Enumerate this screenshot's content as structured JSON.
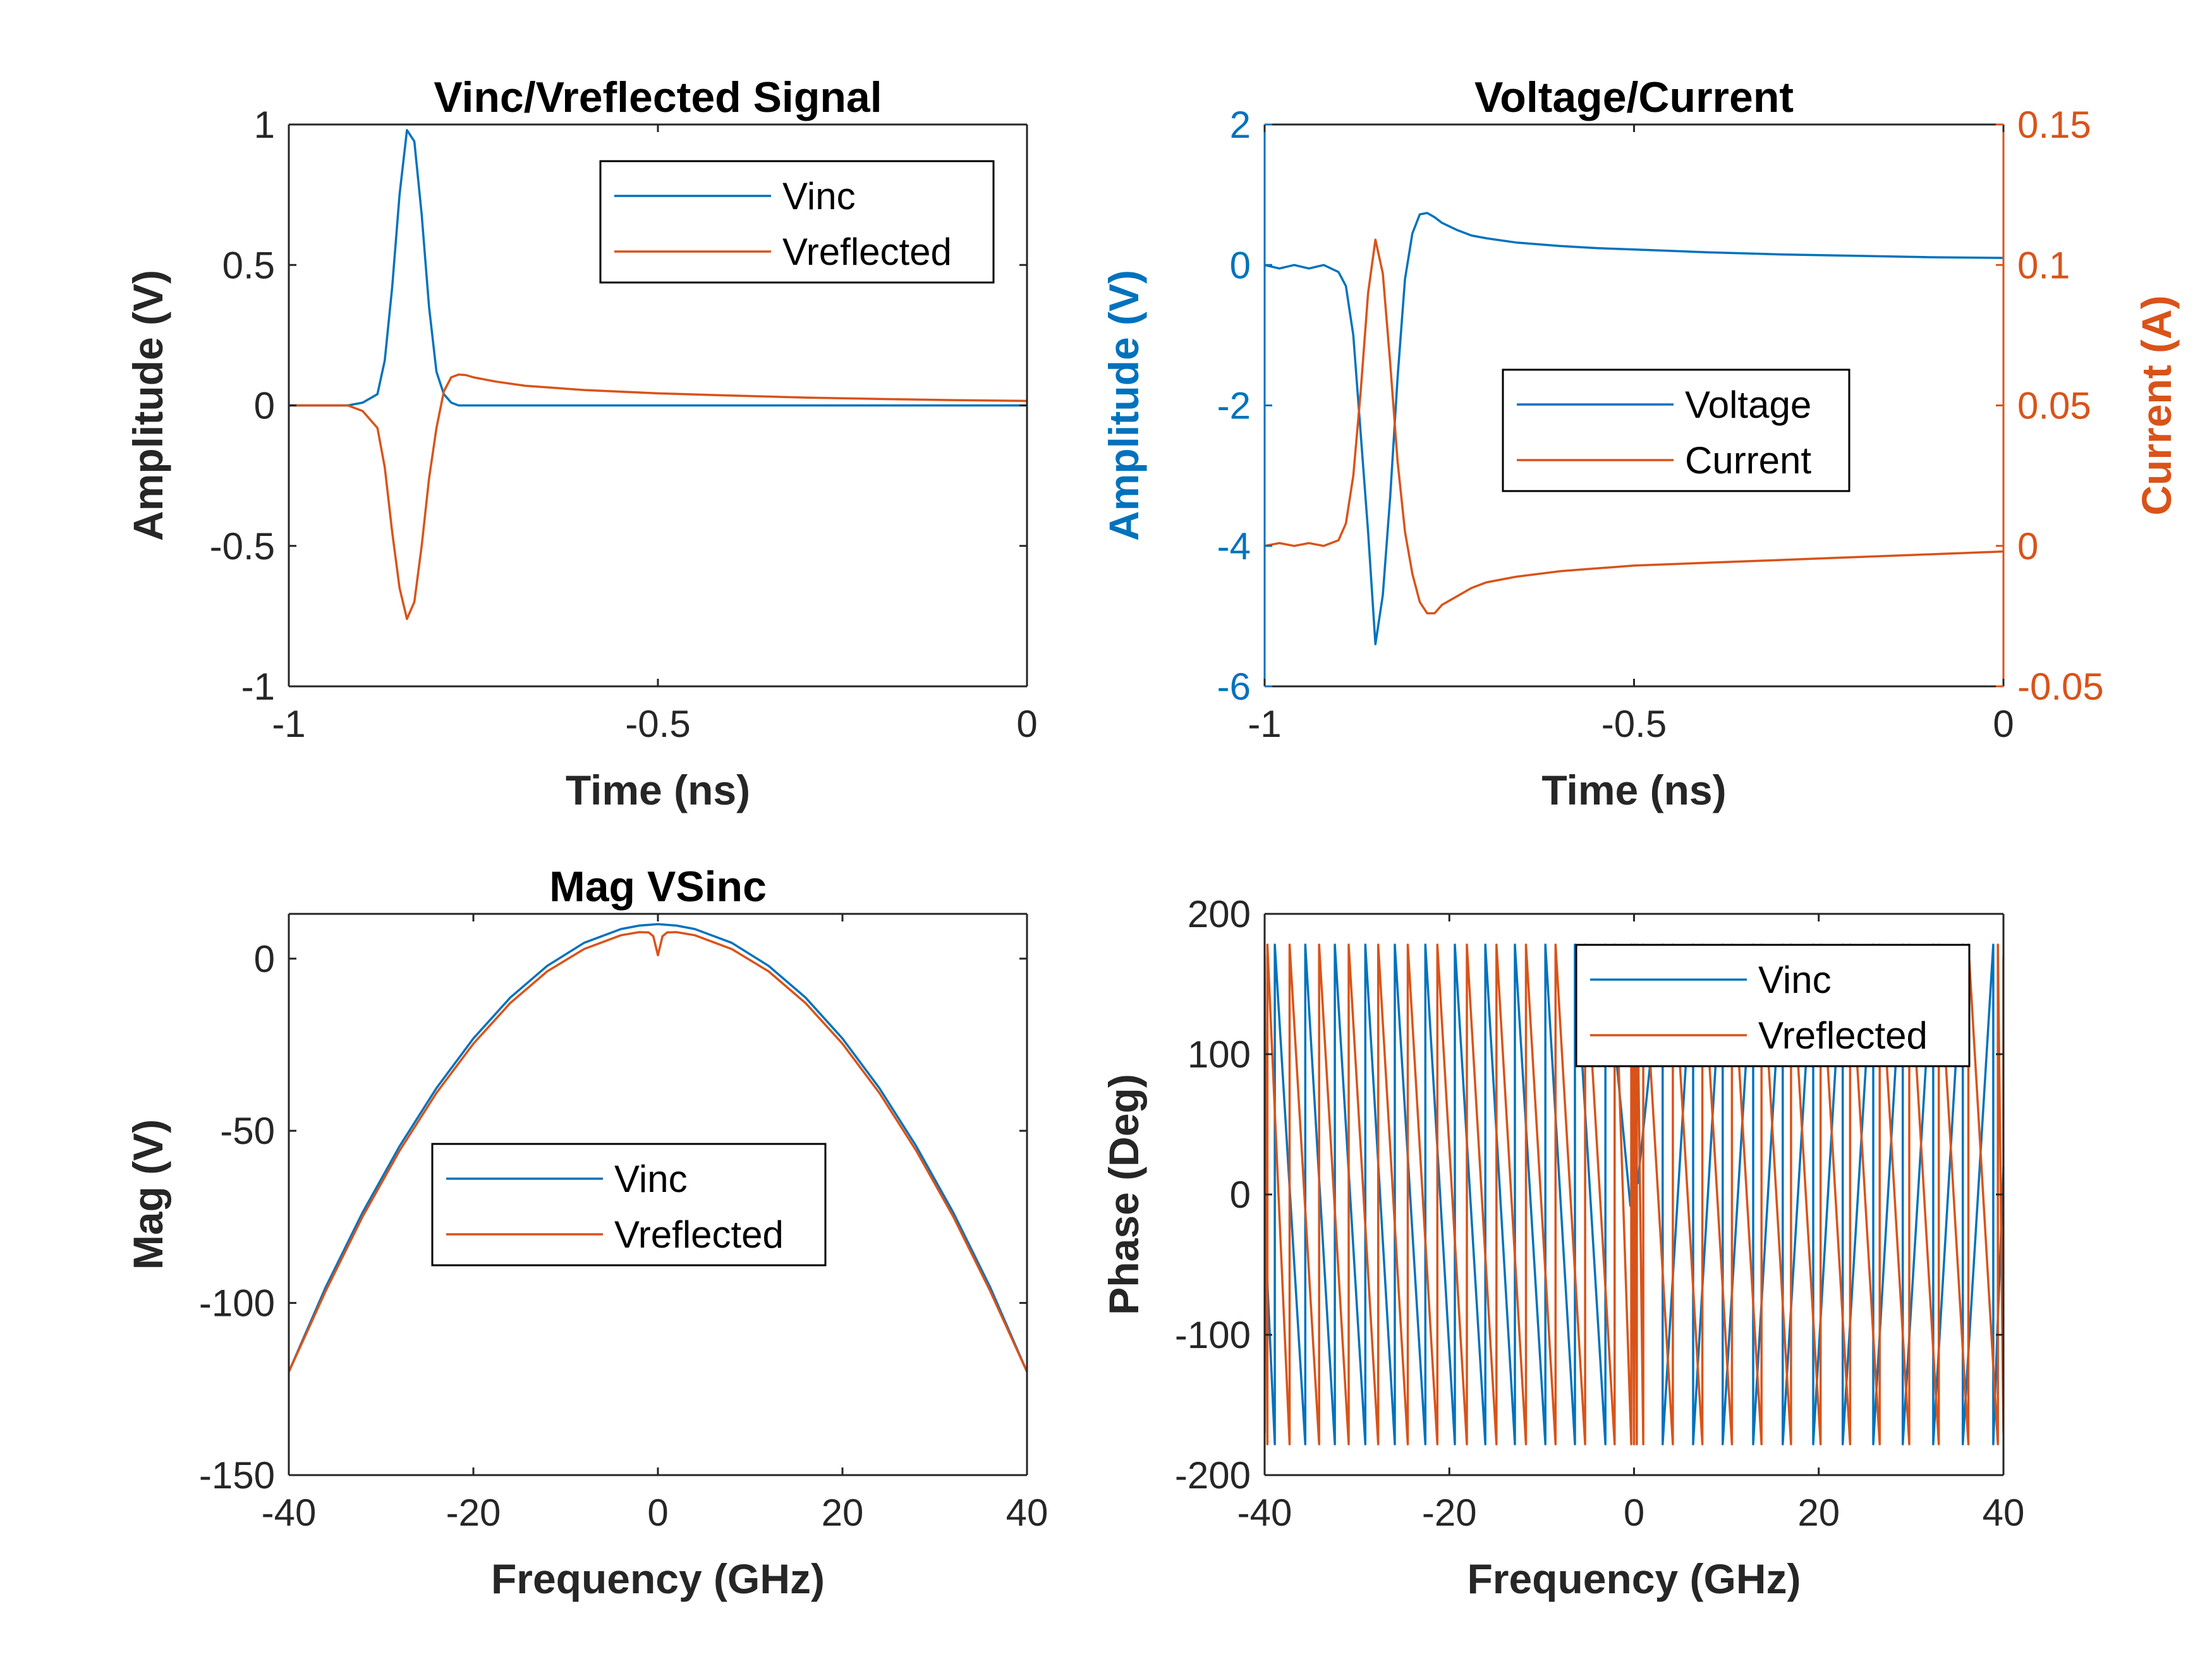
{
  "colors": {
    "vinc": "#0072BD",
    "vreflected": "#D95319",
    "axis": "#262626",
    "background": "#ffffff"
  },
  "chart_data": [
    {
      "id": "panel1",
      "type": "line",
      "title": "Vinc/Vreflected Signal",
      "xlabel": "Time (ns)",
      "ylabel": "Amplitude (V)",
      "xlim": [
        -1,
        0
      ],
      "ylim": [
        -1,
        1
      ],
      "xticks": [
        -1,
        -0.5,
        0
      ],
      "xtick_labels": [
        "-1",
        "-0.5",
        "0"
      ],
      "yticks": [
        -1,
        -0.5,
        0,
        0.5,
        1
      ],
      "ytick_labels": [
        "-1",
        "-0.5",
        "0",
        "0.5",
        "1"
      ],
      "legend_position": "top-right",
      "grid": false,
      "series": [
        {
          "name": "Vinc",
          "color": "#0072BD",
          "x": [
            -1,
            -0.92,
            -0.9,
            -0.88,
            -0.87,
            -0.86,
            -0.85,
            -0.84,
            -0.83,
            -0.82,
            -0.81,
            -0.8,
            -0.79,
            -0.78,
            -0.77,
            -0.75,
            -0.7,
            -0.5,
            0
          ],
          "y": [
            0,
            0,
            0.01,
            0.04,
            0.16,
            0.42,
            0.75,
            0.98,
            0.94,
            0.68,
            0.35,
            0.12,
            0.04,
            0.01,
            0,
            0,
            0,
            0,
            0
          ]
        },
        {
          "name": "Vreflected",
          "color": "#D95319",
          "x": [
            -1,
            -0.92,
            -0.9,
            -0.88,
            -0.87,
            -0.86,
            -0.85,
            -0.84,
            -0.83,
            -0.82,
            -0.81,
            -0.8,
            -0.79,
            -0.78,
            -0.77,
            -0.76,
            -0.75,
            -0.72,
            -0.68,
            -0.6,
            -0.5,
            -0.4,
            -0.3,
            -0.2,
            -0.1,
            0
          ],
          "y": [
            0,
            0,
            -0.02,
            -0.08,
            -0.22,
            -0.45,
            -0.65,
            -0.76,
            -0.7,
            -0.5,
            -0.26,
            -0.08,
            0.05,
            0.1,
            0.11,
            0.108,
            0.1,
            0.085,
            0.07,
            0.055,
            0.043,
            0.035,
            0.028,
            0.023,
            0.019,
            0.016
          ]
        }
      ]
    },
    {
      "id": "panel2",
      "type": "line",
      "title": "Voltage/Current",
      "xlabel": "Time (ns)",
      "ylabel": "Amplitude (V)",
      "y2label": "Current (A)",
      "xlim": [
        -1,
        0
      ],
      "ylim": [
        -6,
        2
      ],
      "y2lim": [
        -0.05,
        0.15
      ],
      "xticks": [
        -1,
        -0.5,
        0
      ],
      "xtick_labels": [
        "-1",
        "-0.5",
        "0"
      ],
      "yticks": [
        -6,
        -4,
        -2,
        0,
        2
      ],
      "ytick_labels": [
        "-6",
        "-4",
        "-2",
        "0",
        "2"
      ],
      "y2ticks": [
        -0.05,
        0,
        0.05,
        0.1,
        0.15
      ],
      "y2tick_labels": [
        "-0.05",
        "0",
        "0.05",
        "0.1",
        "0.15"
      ],
      "legend_position": "center",
      "grid": false,
      "series": [
        {
          "name": "Voltage",
          "axis": "left",
          "color": "#0072BD",
          "x": [
            -1,
            -0.98,
            -0.96,
            -0.94,
            -0.92,
            -0.9,
            -0.89,
            -0.88,
            -0.87,
            -0.86,
            -0.85,
            -0.84,
            -0.83,
            -0.82,
            -0.81,
            -0.8,
            -0.79,
            -0.78,
            -0.77,
            -0.76,
            -0.74,
            -0.72,
            -0.7,
            -0.66,
            -0.6,
            -0.55,
            -0.5,
            -0.4,
            -0.3,
            -0.2,
            -0.1,
            0
          ],
          "y": [
            0,
            -0.05,
            0,
            -0.05,
            0,
            -0.1,
            -0.3,
            -1.0,
            -2.4,
            -3.8,
            -5.4,
            -4.7,
            -3.3,
            -1.6,
            -0.2,
            0.45,
            0.72,
            0.74,
            0.68,
            0.6,
            0.5,
            0.42,
            0.38,
            0.32,
            0.27,
            0.24,
            0.22,
            0.18,
            0.15,
            0.13,
            0.11,
            0.1
          ]
        },
        {
          "name": "Current",
          "axis": "right",
          "color": "#D95319",
          "x": [
            -1,
            -0.98,
            -0.96,
            -0.94,
            -0.92,
            -0.9,
            -0.89,
            -0.88,
            -0.87,
            -0.86,
            -0.85,
            -0.84,
            -0.83,
            -0.82,
            -0.81,
            -0.8,
            -0.79,
            -0.78,
            -0.77,
            -0.76,
            -0.74,
            -0.72,
            -0.7,
            -0.66,
            -0.6,
            -0.55,
            -0.5,
            -0.4,
            -0.3,
            -0.2,
            -0.1,
            0
          ],
          "y": [
            0,
            0.001,
            0,
            0.001,
            0,
            0.002,
            0.008,
            0.025,
            0.055,
            0.09,
            0.109,
            0.097,
            0.065,
            0.03,
            0.005,
            -0.01,
            -0.02,
            -0.024,
            -0.024,
            -0.021,
            -0.018,
            -0.015,
            -0.013,
            -0.011,
            -0.009,
            -0.008,
            -0.007,
            -0.006,
            -0.005,
            -0.004,
            -0.003,
            -0.002
          ]
        }
      ]
    },
    {
      "id": "panel3",
      "type": "line",
      "title": "Mag VSinc",
      "xlabel": "Frequency (GHz)",
      "ylabel": "Mag (V)",
      "xlim": [
        -40,
        40
      ],
      "ylim": [
        -150,
        13
      ],
      "xticks": [
        -40,
        -20,
        0,
        20,
        40
      ],
      "xtick_labels": [
        "-40",
        "-20",
        "0",
        "20",
        "40"
      ],
      "yticks": [
        -150,
        -100,
        -50,
        0
      ],
      "ytick_labels": [
        "-150",
        "-100",
        "-50",
        "0"
      ],
      "legend_position": "center",
      "grid": false,
      "series": [
        {
          "name": "Vinc",
          "color": "#0072BD",
          "x": [
            -40,
            -36,
            -32,
            -28,
            -24,
            -20,
            -16,
            -12,
            -8,
            -4,
            -2,
            0,
            2,
            4,
            8,
            12,
            16,
            20,
            24,
            28,
            32,
            36,
            40
          ],
          "y": [
            -120,
            -95.4,
            -73.7,
            -54.5,
            -37.6,
            -23.2,
            -11.3,
            -2.1,
            4.6,
            8.6,
            9.6,
            10,
            9.6,
            8.6,
            4.6,
            -2.1,
            -11.3,
            -23.2,
            -37.6,
            -54.5,
            -73.7,
            -95.4,
            -120
          ]
        },
        {
          "name": "Vreflected",
          "color": "#D95319",
          "x": [
            -40,
            -36,
            -32,
            -28,
            -24,
            -20,
            -16,
            -12,
            -8,
            -4,
            -2,
            -1,
            -0.5,
            0,
            0.5,
            1,
            2,
            4,
            8,
            12,
            16,
            20,
            24,
            28,
            32,
            36,
            40
          ],
          "y": [
            -120,
            -96.5,
            -74.9,
            -55.8,
            -39,
            -24.7,
            -12.9,
            -3.7,
            2.8,
            6.8,
            7.7,
            7.6,
            6.5,
            1,
            6.5,
            7.6,
            7.7,
            6.8,
            2.8,
            -3.7,
            -12.9,
            -24.7,
            -39,
            -55.8,
            -74.9,
            -96.5,
            -120
          ]
        }
      ]
    },
    {
      "id": "panel4",
      "type": "line",
      "title": "",
      "xlabel": "Frequency (GHz)",
      "ylabel": "Phase (Deg)",
      "xlim": [
        -40,
        40
      ],
      "ylim": [
        -200,
        200
      ],
      "xticks": [
        -40,
        -20,
        0,
        20,
        40
      ],
      "xtick_labels": [
        "-40",
        "-20",
        "0",
        "20",
        "40"
      ],
      "yticks": [
        -200,
        -100,
        0,
        100,
        200
      ],
      "ytick_labels": [
        "-200",
        "-100",
        "0",
        "100",
        "200"
      ],
      "legend_position": "top-right",
      "grid": false,
      "series": [
        {
          "name": "Vinc",
          "color": "#0072BD",
          "x": [
            -40,
            -38.9,
            -38.9,
            -35.6,
            -35.6,
            -32.4,
            -32.4,
            -29.1,
            -29.1,
            -25.9,
            -25.9,
            -22.6,
            -22.6,
            -19.4,
            -19.4,
            -16.1,
            -16.1,
            -12.9,
            -12.9,
            -9.6,
            -9.6,
            -6.4,
            -6.4,
            -3.1,
            -3.1,
            -0.4,
            0,
            0.4,
            3.1,
            3.1,
            6.4,
            6.4,
            9.6,
            9.6,
            12.9,
            12.9,
            16.1,
            16.1,
            19.4,
            19.4,
            22.6,
            22.6,
            25.9,
            25.9,
            29.1,
            29.1,
            32.4,
            32.4,
            35.6,
            35.6,
            38.9,
            38.9,
            40
          ],
          "y": [
            -20,
            -178,
            178,
            -178,
            178,
            -178,
            178,
            -178,
            178,
            -178,
            178,
            -178,
            178,
            -178,
            178,
            -178,
            178,
            -178,
            178,
            -178,
            178,
            -178,
            178,
            -178,
            178,
            -8,
            8,
            8,
            178,
            -178,
            178,
            -178,
            178,
            -178,
            178,
            -178,
            178,
            -178,
            178,
            -178,
            178,
            -178,
            178,
            -178,
            178,
            -178,
            178,
            -178,
            178,
            -178,
            178,
            -178,
            20
          ]
        },
        {
          "name": "Vreflected",
          "color": "#D95319",
          "x": [
            -40,
            -40,
            -39.7,
            -39.7,
            -37.3,
            -37.3,
            -34.1,
            -34.1,
            -30.9,
            -30.9,
            -27.7,
            -27.7,
            -24.5,
            -24.5,
            -21.3,
            -21.3,
            -18.1,
            -18.1,
            -14.9,
            -14.9,
            -11.7,
            -11.7,
            -8.5,
            -8.5,
            -5.3,
            -5.3,
            -2.1,
            -2.1,
            -0.3,
            -0.3,
            0,
            0,
            0.3,
            0.3,
            1,
            1,
            4.2,
            4.2,
            7.4,
            7.4,
            10.6,
            10.6,
            13.8,
            13.8,
            17,
            17,
            20.2,
            20.2,
            23.4,
            23.4,
            26.6,
            26.6,
            29.8,
            29.8,
            33,
            33,
            36.2,
            36.2,
            39.4,
            39.4,
            40,
            40
          ],
          "y": [
            -170,
            170,
            -178,
            178,
            -178,
            178,
            -178,
            178,
            -178,
            178,
            -178,
            178,
            -178,
            178,
            -178,
            178,
            -178,
            178,
            -178,
            178,
            -178,
            178,
            -178,
            178,
            -178,
            178,
            -178,
            178,
            -178,
            178,
            -178,
            178,
            -178,
            178,
            -178,
            178,
            -178,
            178,
            -178,
            178,
            -178,
            178,
            -178,
            178,
            -178,
            178,
            -178,
            178,
            -178,
            178,
            -178,
            178,
            -178,
            178,
            -178,
            178,
            -178,
            178,
            -178,
            178,
            -170,
            170
          ]
        }
      ]
    }
  ]
}
